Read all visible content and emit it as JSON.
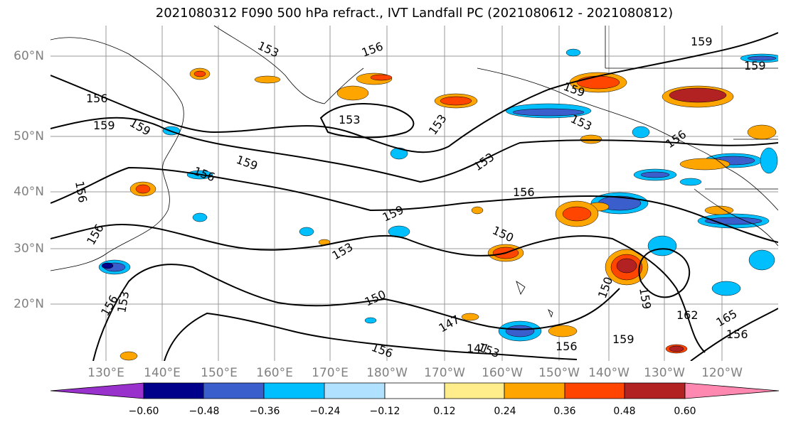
{
  "title": "2021080312 F090 500 hPa refract., IVT Landfall PC (2021080612 - 2021080812)",
  "map": {
    "lat_labels": [
      "60°N",
      "50°N",
      "40°N",
      "30°N",
      "20°N"
    ],
    "lon_labels": [
      "130°E",
      "140°E",
      "150°E",
      "160°E",
      "170°E",
      "180°W",
      "170°W",
      "160°W",
      "150°W",
      "140°W",
      "130°W",
      "120°W"
    ],
    "contour_labels": [
      "153",
      "156",
      "156",
      "159",
      "159",
      "153",
      "156",
      "159",
      "153",
      "153",
      "156",
      "159",
      "150",
      "159",
      "153",
      "156",
      "159",
      "159",
      "153",
      "150",
      "147",
      "156",
      "147",
      "153",
      "156",
      "159",
      "150",
      "159",
      "162",
      "165",
      "156",
      "156",
      "153",
      "156",
      "156"
    ]
  },
  "colorbar": {
    "ticks": [
      "−0.60",
      "−0.48",
      "−0.36",
      "−0.24",
      "−0.12",
      "0.12",
      "0.24",
      "0.36",
      "0.48",
      "0.60"
    ],
    "colors": [
      "#9932cc",
      "#00008b",
      "#3a5fcd",
      "#00bfff",
      "#b0e2ff",
      "#ffffff",
      "#ffec8b",
      "#ffa500",
      "#ff4500",
      "#b22222",
      "#ff88b0"
    ]
  }
}
